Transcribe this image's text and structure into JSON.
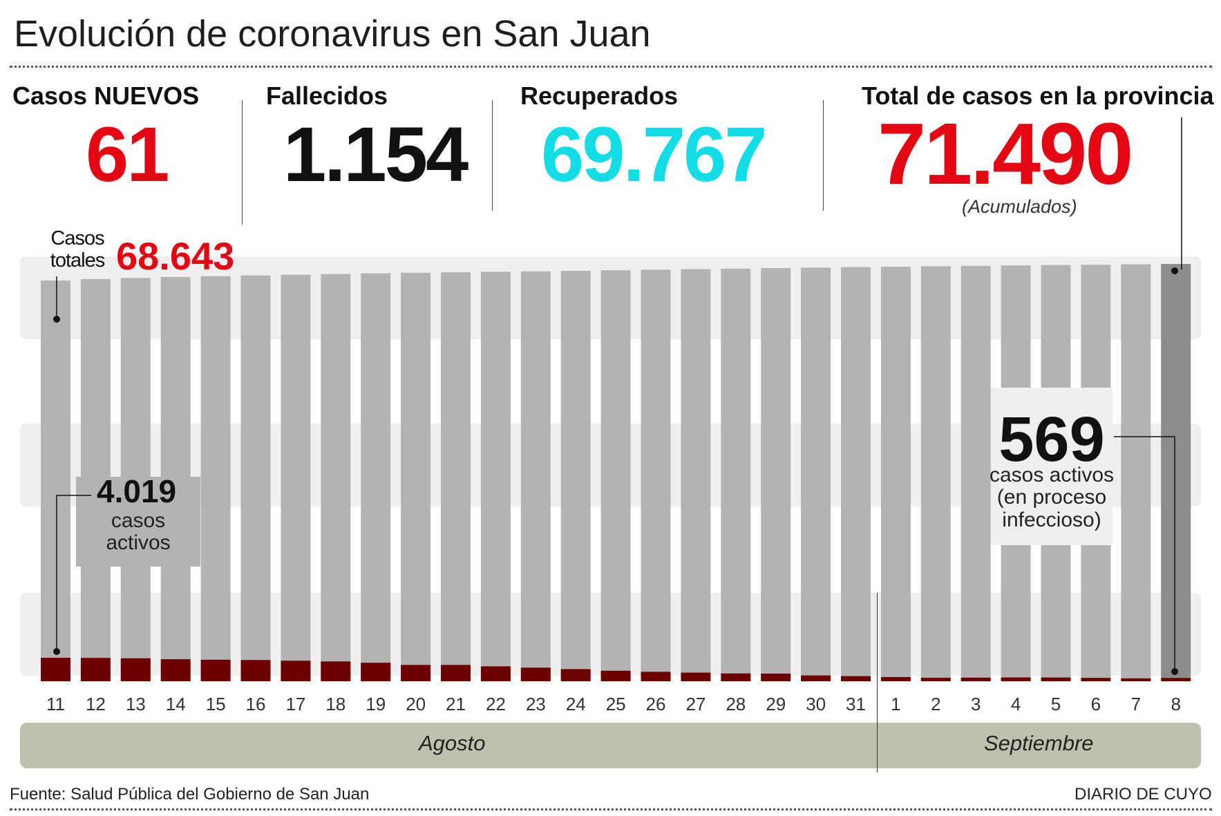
{
  "title": "Evolución de coronavirus en San Juan",
  "stats": [
    {
      "label": "Casos NUEVOS",
      "value": "61"
    },
    {
      "label": "Fallecidos",
      "value": "1.154"
    },
    {
      "label": "Recuperados",
      "value": "69.767"
    },
    {
      "label": "Total de casos en la provincia",
      "value": "71.490",
      "note": "(Acumulados)"
    }
  ],
  "colors": {
    "red": "#e30613",
    "cyan": "#12dde6",
    "total_bar": "#b3b3b3",
    "total_bar_last": "#8c8c8c",
    "active_bar": "#6e0000",
    "month_band": "#bfc1ae",
    "background_band": "#efefef"
  },
  "annotations": {
    "start_total_label": "Casos totales",
    "start_total_value": "68.643",
    "start_active_value": "4.019",
    "start_active_label": "casos activos",
    "end_active_value": "569",
    "end_active_label": "casos activos (en proceso infeccioso)"
  },
  "months": [
    "Agosto",
    "Septiembre"
  ],
  "footer": {
    "source": "Fuente: Salud Pública del Gobierno de San Juan",
    "brand": "DIARIO DE CUYO"
  },
  "chart_data": {
    "type": "bar",
    "categories": [
      "11",
      "12",
      "13",
      "14",
      "15",
      "16",
      "17",
      "18",
      "19",
      "20",
      "21",
      "22",
      "23",
      "24",
      "25",
      "26",
      "27",
      "28",
      "29",
      "30",
      "31",
      "1",
      "2",
      "3",
      "4",
      "5",
      "6",
      "7",
      "8"
    ],
    "series": [
      {
        "name": "Casos totales",
        "values": [
          68643,
          68900,
          69080,
          69250,
          69400,
          69520,
          69640,
          69760,
          69880,
          69980,
          70060,
          70140,
          70220,
          70300,
          70400,
          70500,
          70600,
          70680,
          70780,
          70860,
          70940,
          71020,
          71100,
          71160,
          71230,
          71300,
          71360,
          71429,
          71490
        ]
      },
      {
        "name": "casos activos",
        "values": [
          4019,
          4000,
          3930,
          3780,
          3690,
          3640,
          3520,
          3400,
          3170,
          2800,
          2800,
          2560,
          2330,
          2080,
          1800,
          1620,
          1480,
          1340,
          1310,
          1000,
          880,
          720,
          600,
          620,
          650,
          640,
          580,
          500,
          569
        ]
      }
    ],
    "ylim": [
      0,
      71490
    ]
  }
}
